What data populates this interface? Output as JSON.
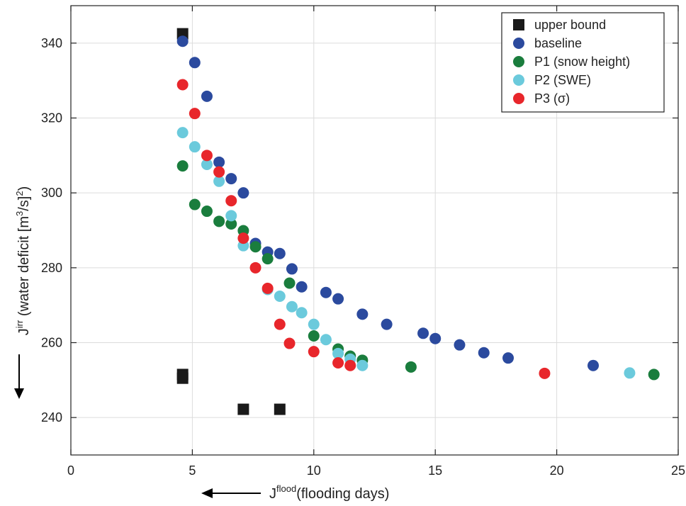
{
  "chart_data": {
    "type": "scatter",
    "xlim": [
      0,
      25
    ],
    "ylim": [
      230,
      350
    ],
    "x_ticks": [
      0,
      5,
      10,
      15,
      20,
      25
    ],
    "y_ticks": [
      240,
      260,
      280,
      300,
      320,
      340
    ],
    "grid": true,
    "legend_position": "top-right",
    "xlabel_main": "J",
    "xlabel_sup": "flood",
    "xlabel_rest": "(flooding days)",
    "ylabel_main": "J",
    "ylabel_sup": "irr",
    "ylabel_rest": " (water deficit [m",
    "ylabel_sup2": "3",
    "ylabel_mid": "/s]",
    "ylabel_sup3": "2",
    "ylabel_end": ")",
    "series": [
      {
        "name": "upper bound",
        "marker": "square",
        "color": "#1a1a1a",
        "points": [
          [
            4.6,
            342.5
          ],
          [
            4.6,
            251.5
          ],
          [
            4.6,
            250.5
          ],
          [
            7.1,
            242.2
          ],
          [
            8.6,
            242.2
          ]
        ]
      },
      {
        "name": "baseline",
        "marker": "circle",
        "color": "#2b4a9e",
        "points": [
          [
            4.6,
            340.5
          ],
          [
            5.1,
            334.8
          ],
          [
            5.6,
            325.8
          ],
          [
            6.1,
            308.2
          ],
          [
            6.6,
            303.8
          ],
          [
            7.1,
            300.0
          ],
          [
            7.6,
            286.5
          ],
          [
            8.1,
            284.2
          ],
          [
            8.6,
            283.8
          ],
          [
            9.1,
            279.7
          ],
          [
            9.5,
            274.9
          ],
          [
            10.5,
            273.4
          ],
          [
            11.0,
            271.7
          ],
          [
            12.0,
            267.6
          ],
          [
            13.0,
            264.9
          ],
          [
            14.5,
            262.5
          ],
          [
            15.0,
            261.1
          ],
          [
            16.0,
            259.4
          ],
          [
            17.0,
            257.3
          ],
          [
            18.0,
            255.9
          ],
          [
            21.5,
            253.9
          ]
        ]
      },
      {
        "name": "P1 (snow height)",
        "marker": "circle",
        "color": "#1a7d3d",
        "points": [
          [
            4.6,
            307.2
          ],
          [
            5.1,
            296.9
          ],
          [
            5.6,
            295.1
          ],
          [
            6.1,
            292.4
          ],
          [
            6.6,
            291.7
          ],
          [
            7.1,
            289.9
          ],
          [
            7.6,
            285.6
          ],
          [
            8.1,
            282.4
          ],
          [
            9.0,
            275.9
          ],
          [
            10.0,
            261.8
          ],
          [
            11.0,
            258.3
          ],
          [
            11.5,
            256.4
          ],
          [
            12.0,
            255.3
          ],
          [
            14.0,
            253.5
          ],
          [
            24.0,
            251.5
          ]
        ]
      },
      {
        "name": "P2 (SWE)",
        "marker": "circle",
        "color": "#6bcadc",
        "points": [
          [
            4.6,
            316.1
          ],
          [
            5.1,
            312.3
          ],
          [
            5.6,
            307.6
          ],
          [
            6.1,
            303.1
          ],
          [
            6.6,
            293.9
          ],
          [
            7.1,
            285.9
          ],
          [
            8.1,
            274.2
          ],
          [
            8.6,
            272.4
          ],
          [
            9.1,
            269.6
          ],
          [
            9.5,
            268.0
          ],
          [
            10.0,
            264.9
          ],
          [
            10.5,
            260.8
          ],
          [
            11.0,
            257.1
          ],
          [
            11.5,
            255.6
          ],
          [
            12.0,
            253.9
          ],
          [
            23.0,
            251.9
          ]
        ]
      },
      {
        "name": "P3 (σ)",
        "marker": "circle",
        "color": "#e8262b",
        "points": [
          [
            4.6,
            328.9
          ],
          [
            5.1,
            321.2
          ],
          [
            5.6,
            310.0
          ],
          [
            6.1,
            305.6
          ],
          [
            6.6,
            297.9
          ],
          [
            7.1,
            287.9
          ],
          [
            7.6,
            280.0
          ],
          [
            8.1,
            274.5
          ],
          [
            8.6,
            264.9
          ],
          [
            9.0,
            259.8
          ],
          [
            10.0,
            257.6
          ],
          [
            11.0,
            254.6
          ],
          [
            11.5,
            253.9
          ],
          [
            19.5,
            251.8
          ]
        ]
      }
    ]
  }
}
